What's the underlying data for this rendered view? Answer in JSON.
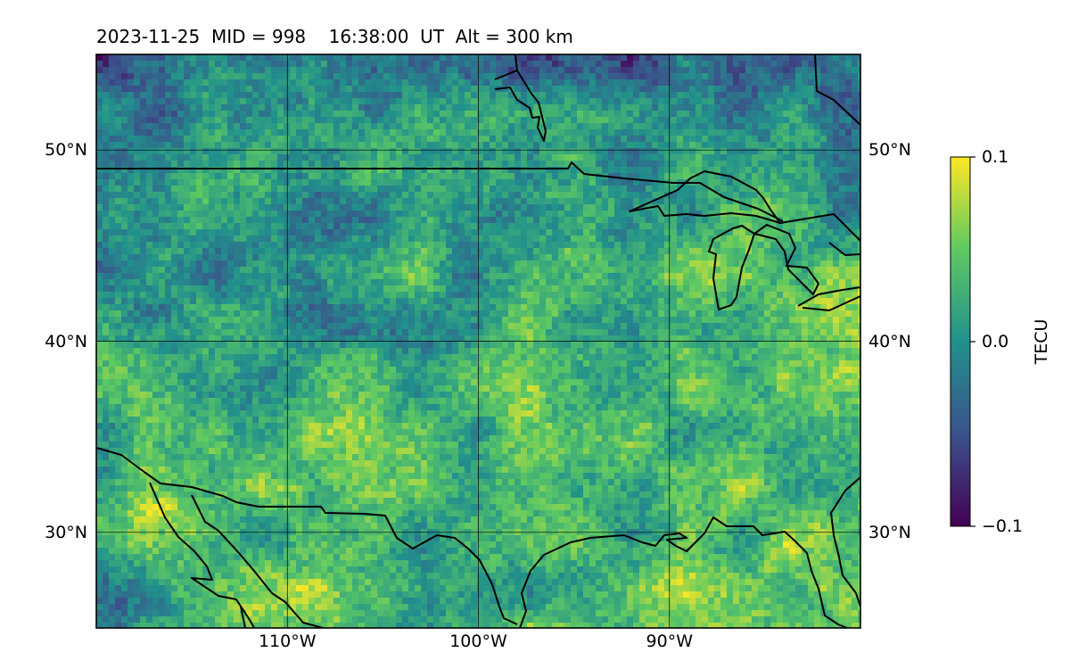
{
  "title": {
    "date": "2023-11-25",
    "mid": "MID = 998",
    "time": "16:38:00",
    "time_unit": "UT",
    "altitude": "Alt = 300 km"
  },
  "map": {
    "projection": "plate carree",
    "lon_range": [
      -120,
      -80
    ],
    "lat_range": [
      25,
      55
    ],
    "gridlines": true,
    "lat_ticks": [
      {
        "lat": 50,
        "label": "50°N"
      },
      {
        "lat": 40,
        "label": "40°N"
      },
      {
        "lat": 30,
        "label": "30°N"
      }
    ],
    "lon_ticks": [
      {
        "lon": -110,
        "label": "110°W"
      },
      {
        "lon": -100,
        "label": "100°W"
      },
      {
        "lon": -90,
        "label": "90°W"
      }
    ],
    "field": "differential TEC (detrended)",
    "colormap": "viridis",
    "features": [
      "coastlines",
      "national borders",
      "Great Lakes"
    ]
  },
  "colorbar": {
    "label": "TECU",
    "min": -0.1,
    "max": 0.1,
    "ticks": [
      {
        "value": 0.1,
        "label": "0.1"
      },
      {
        "value": 0.0,
        "label": "0.0"
      },
      {
        "value": -0.1,
        "label": "−0.1"
      }
    ],
    "colors": [
      "#440154",
      "#3b528b",
      "#21918c",
      "#5ec962",
      "#fde725"
    ]
  }
}
